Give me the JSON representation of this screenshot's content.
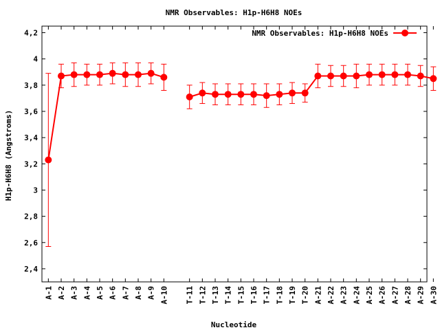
{
  "chart_data": {
    "type": "line",
    "title": "NMR Observables: H1p-H6H8 NOEs",
    "xlabel": "Nucleotide",
    "ylabel": "H1p-H6H8 (Angstroms)",
    "ylim": [
      2.3,
      4.25
    ],
    "yticks": [
      2.4,
      2.6,
      2.8,
      3,
      3.2,
      3.4,
      3.6,
      3.8,
      4,
      4.2
    ],
    "ytick_labels": [
      "2,4",
      "2,6",
      "2,8",
      "3",
      "3,2",
      "3,4",
      "3,6",
      "3,8",
      "4",
      "4,2"
    ],
    "xlim": [
      0.5,
      30.5
    ],
    "legend_position": "top-right",
    "grid": false,
    "color": "#ff0000",
    "categories": [
      "A-1",
      "A-2",
      "A-3",
      "A-4",
      "A-5",
      "A-6",
      "A-7",
      "A-8",
      "A-9",
      "A-10",
      "T-11",
      "T-12",
      "T-13",
      "T-14",
      "T-15",
      "T-16",
      "T-17",
      "T-18",
      "T-19",
      "T-20",
      "A-21",
      "A-22",
      "A-23",
      "A-24",
      "A-25",
      "A-26",
      "A-27",
      "A-28",
      "A-29",
      "A-30"
    ],
    "x_positions": [
      1,
      2,
      3,
      4,
      5,
      6,
      7,
      8,
      9,
      10,
      12,
      13,
      14,
      15,
      16,
      17,
      18,
      19,
      20,
      21,
      22,
      23,
      24,
      25,
      26,
      27,
      28,
      29,
      30,
      31
    ],
    "series": [
      {
        "name": "NMR Observables: H1p-H6H8 NOEs",
        "segments": [
          [
            0,
            1,
            2,
            3,
            4,
            5,
            6,
            7,
            8,
            9
          ],
          [
            10,
            11,
            12,
            13,
            14,
            15,
            16,
            17,
            18,
            19,
            20,
            21,
            22,
            23,
            24,
            25,
            26,
            27,
            28,
            29
          ]
        ],
        "values": [
          3.23,
          3.87,
          3.88,
          3.88,
          3.88,
          3.89,
          3.88,
          3.88,
          3.89,
          3.86,
          3.71,
          3.74,
          3.73,
          3.73,
          3.73,
          3.73,
          3.72,
          3.73,
          3.74,
          3.74,
          3.87,
          3.87,
          3.87,
          3.87,
          3.88,
          3.88,
          3.88,
          3.88,
          3.87,
          3.85
        ],
        "errors": [
          0.66,
          0.09,
          0.09,
          0.08,
          0.08,
          0.08,
          0.09,
          0.09,
          0.08,
          0.1,
          0.09,
          0.08,
          0.08,
          0.08,
          0.08,
          0.08,
          0.09,
          0.08,
          0.08,
          0.07,
          0.09,
          0.08,
          0.08,
          0.09,
          0.08,
          0.08,
          0.08,
          0.08,
          0.08,
          0.09
        ]
      }
    ]
  }
}
